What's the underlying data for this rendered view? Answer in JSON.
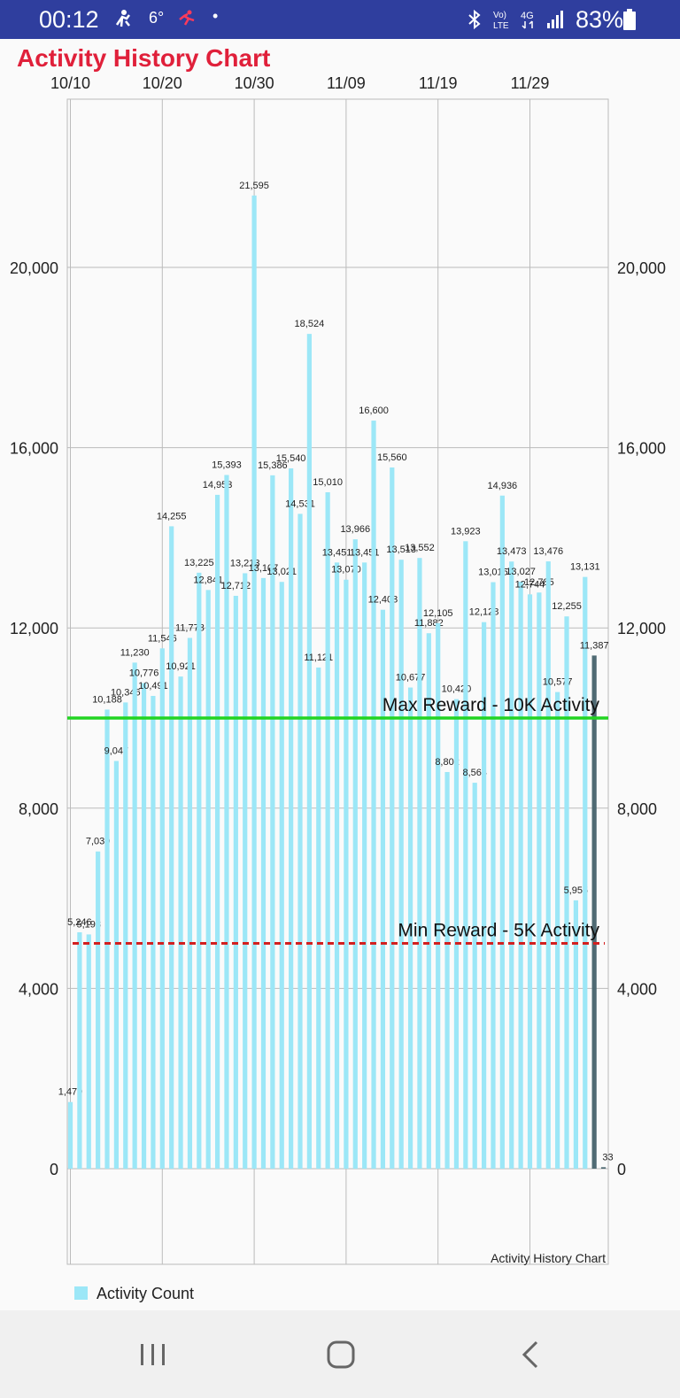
{
  "status_bar": {
    "time": "00:12",
    "temperature": "6°",
    "battery": "83%",
    "icons": [
      "person-icon",
      "activity-icon",
      "bluetooth-icon",
      "volte-icon",
      "4g-icon",
      "signal-icon",
      "battery-icon"
    ]
  },
  "app": {
    "title": "Activity History Chart"
  },
  "chart_data": {
    "type": "bar",
    "title": "Activity History Chart",
    "watermark": "Activity History Chart",
    "ylim": [
      0,
      22000
    ],
    "yticks": [
      0,
      4000,
      8000,
      12000,
      16000,
      20000
    ],
    "ytick_labels": [
      "0",
      "4,000",
      "8,000",
      "12,000",
      "16,000",
      "20,000"
    ],
    "xtick_labels": [
      "10/10",
      "10/20",
      "10/30",
      "11/09",
      "11/19",
      "11/29"
    ],
    "xtick_indices": [
      0,
      10,
      20,
      30,
      40,
      50
    ],
    "legend": {
      "position": "bottom-left",
      "label": "Activity Count",
      "color": "#9ce7f7"
    },
    "series": [
      {
        "name": "Activity Count",
        "color": "#9ce7f7",
        "values": [
          1479,
          5246,
          5198,
          7039,
          10188,
          9047,
          10346,
          11230,
          10776,
          10491,
          11546,
          14255,
          10921,
          11778,
          13225,
          12841,
          14953,
          15393,
          12712,
          13213,
          21595,
          13107,
          15386,
          13021,
          15540,
          14531,
          18524,
          11121,
          15010,
          13451,
          13070,
          13966,
          13451,
          16600,
          12403,
          15560,
          13513,
          10677,
          13552,
          11882,
          12105,
          8802,
          10420,
          13923,
          8564,
          12128,
          13015,
          14936,
          13473,
          13027,
          12744,
          12785,
          13476,
          10577,
          12255,
          5955,
          13131,
          11387,
          33
        ],
        "labels": [
          "1,479",
          "5,246",
          "5,198",
          "7,039",
          "10,188",
          "9,047",
          "10,346",
          "11,230",
          "10,776",
          "10,491",
          "11,546",
          "14,255",
          "10,921",
          "11,778",
          "13,225",
          "12,841",
          "14,953",
          "15,393",
          "12,712",
          "13,213",
          "21,595",
          "13,107",
          "15,386",
          "13,021",
          "15,540",
          "14,531",
          "18,524",
          "11,121",
          "15,010",
          "13,451",
          "13,070",
          "13,966",
          "13,451",
          "16,600",
          "12,403",
          "15,560",
          "13,513",
          "10,677",
          "13,552",
          "11,882",
          "12,105",
          "8,802",
          "10,420",
          "13,923",
          "8,564",
          "12,128",
          "13,015",
          "14,936",
          "13,473",
          "13,027",
          "12,744",
          "12,785",
          "13,476",
          "10,577",
          "12,255",
          "5,955",
          "13,131",
          "11,387",
          "33"
        ]
      }
    ],
    "highlight": {
      "from_index": 57,
      "color": "#4f6a73"
    },
    "reference_lines": [
      {
        "value": 10000,
        "label": "Max Reward - 10K Activity",
        "color": "#22d422",
        "style": "solid"
      },
      {
        "value": 5000,
        "label": "Min Reward - 5K Activity",
        "color": "#d32020",
        "style": "dashed"
      }
    ]
  },
  "nav_bar": {
    "icons": [
      "recents-icon",
      "home-icon",
      "back-icon"
    ]
  }
}
